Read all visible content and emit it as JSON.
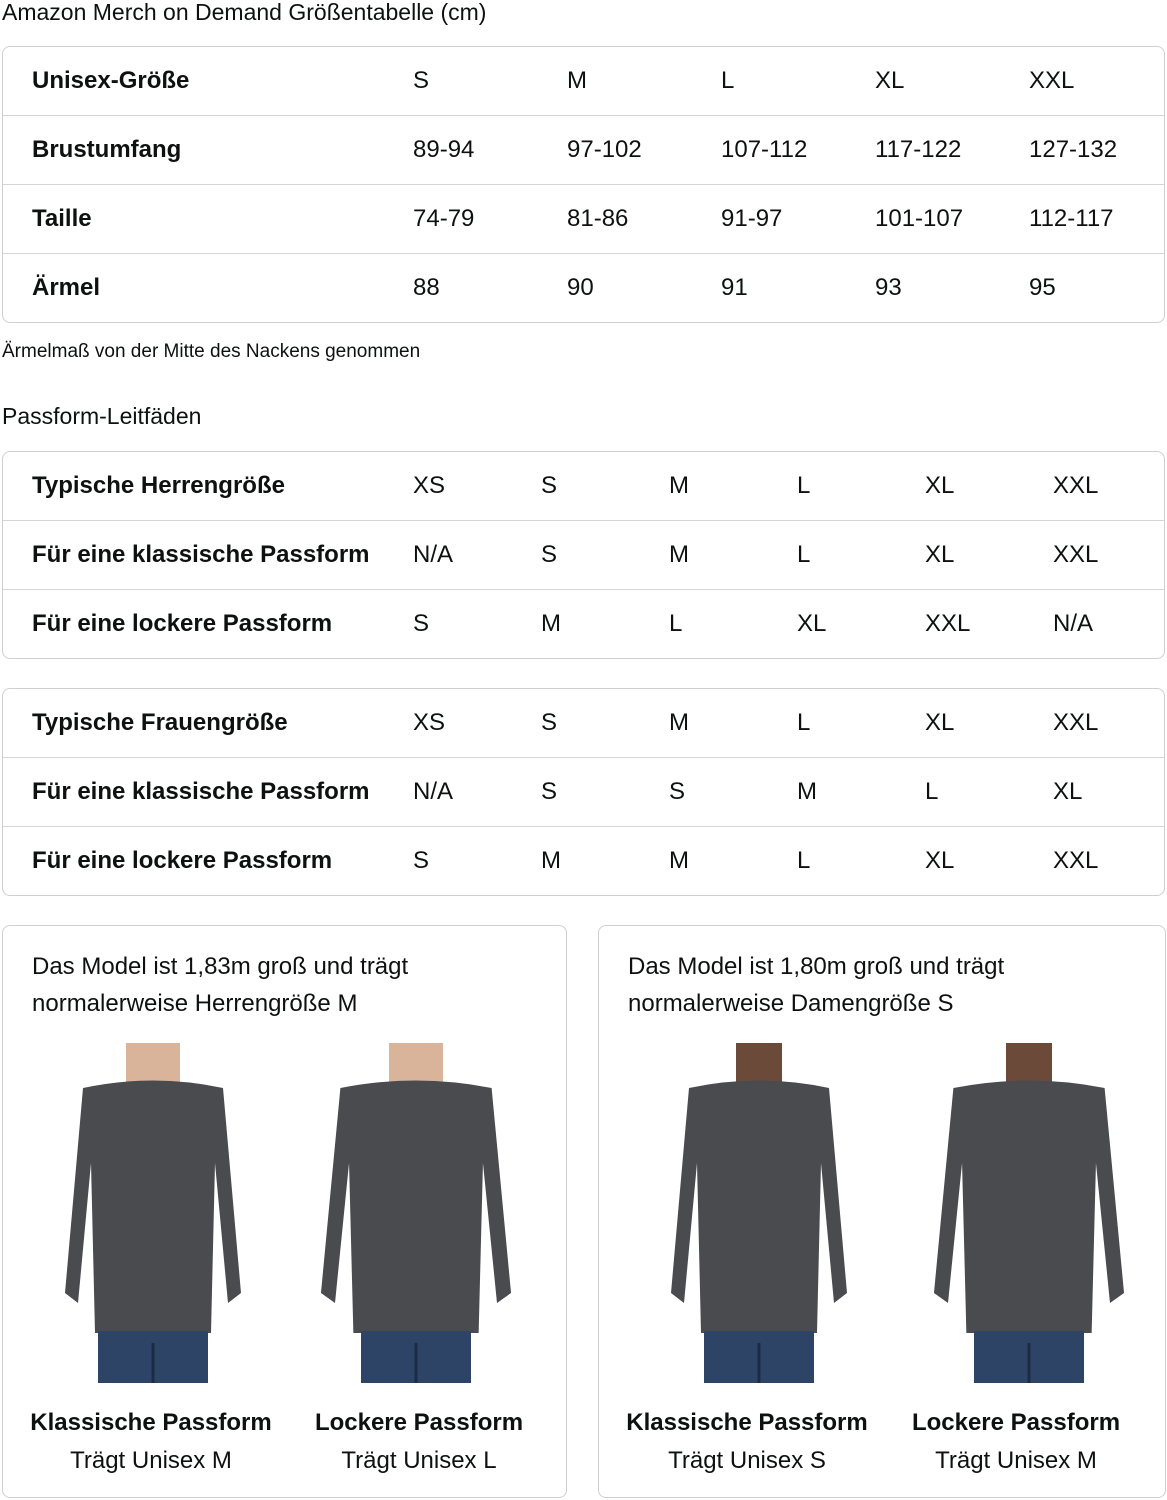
{
  "title": "Amazon Merch on Demand Größentabelle (cm)",
  "unisex_table": {
    "rows": [
      {
        "label": "Unisex-Größe",
        "values": [
          "S",
          "M",
          "L",
          "XL",
          "XXL"
        ]
      },
      {
        "label": "Brustumfang",
        "values": [
          "89-94",
          "97-102",
          "107-112",
          "117-122",
          "127-132"
        ]
      },
      {
        "label": "Taille",
        "values": [
          "74-79",
          "81-86",
          "91-97",
          "101-107",
          "112-117"
        ]
      },
      {
        "label": "Ärmel",
        "values": [
          "88",
          "90",
          "91",
          "93",
          "95"
        ]
      }
    ]
  },
  "note": "Ärmelmaß von der Mitte des Nackens genommen",
  "fit_heading": "Passform-Leitfäden",
  "men_table": {
    "rows": [
      {
        "label": "Typische Herrengröße",
        "values": [
          "XS",
          "S",
          "M",
          "L",
          "XL",
          "XXL"
        ]
      },
      {
        "label": "Für eine klassische Passform",
        "values": [
          "N/A",
          "S",
          "M",
          "L",
          "XL",
          "XXL"
        ]
      },
      {
        "label": "Für eine lockere Passform",
        "values": [
          "S",
          "M",
          "L",
          "XL",
          "XXL",
          "N/A"
        ]
      }
    ]
  },
  "women_table": {
    "rows": [
      {
        "label": "Typische Frauengröße",
        "values": [
          "XS",
          "S",
          "M",
          "L",
          "XL",
          "XXL"
        ]
      },
      {
        "label": "Für eine klassische Passform",
        "values": [
          "N/A",
          "S",
          "S",
          "M",
          "L",
          "XL"
        ]
      },
      {
        "label": "Für eine lockere Passform",
        "values": [
          "S",
          "M",
          "M",
          "L",
          "XL",
          "XXL"
        ]
      }
    ]
  },
  "cards": [
    {
      "text1": "Das Model ist 1,83m groß und trägt",
      "text2": "normalerweise Herrengröße M",
      "figures": [
        {
          "title": "Klassische Passform",
          "sub": "Trägt Unisex M"
        },
        {
          "title": "Lockere Passform",
          "sub": "Trägt Unisex L"
        }
      ]
    },
    {
      "text1": "Das Model ist 1,80m groß und trägt",
      "text2": "normalerweise Damengröße S",
      "figures": [
        {
          "title": "Klassische Passform",
          "sub": "Trägt Unisex S"
        },
        {
          "title": "Lockere Passform",
          "sub": "Trägt Unisex M"
        }
      ]
    }
  ],
  "colors": {
    "text": "#0f1111",
    "border": "#cfcfcf",
    "shirt": "#4a4b4e",
    "jeans": "#2e4466"
  }
}
